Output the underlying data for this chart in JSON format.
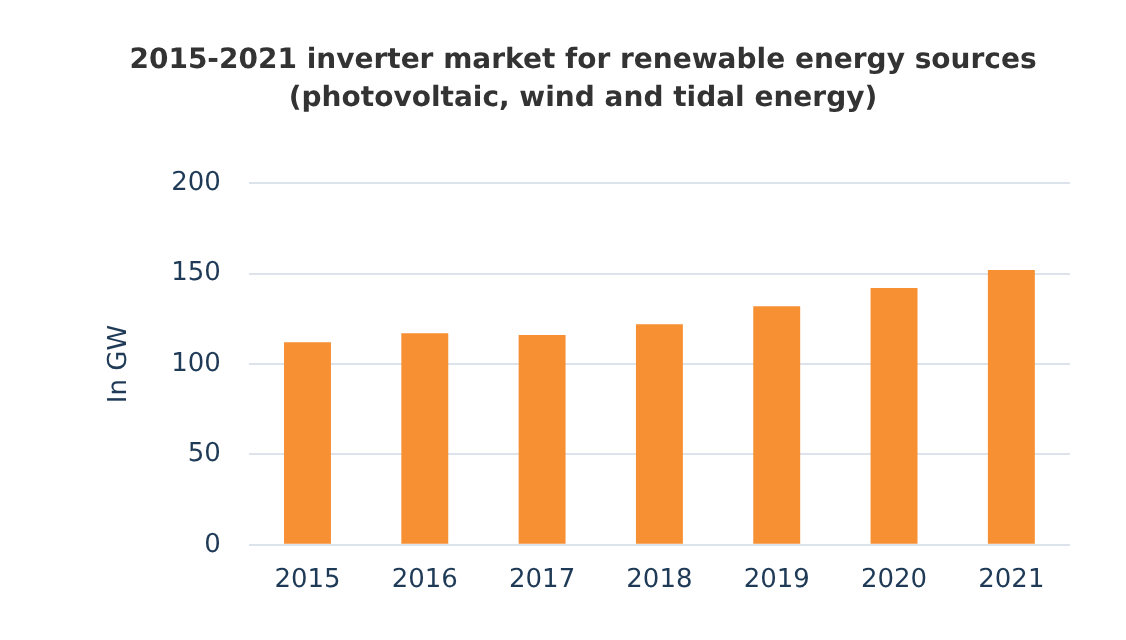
{
  "chart_data": {
    "type": "bar",
    "title": "2015-2021 inverter market for renewable energy sources",
    "subtitle": "(photovoltaic, wind and tidal energy)",
    "ylabel": "In GW",
    "categories": [
      "2015",
      "2016",
      "2017",
      "2018",
      "2019",
      "2020",
      "2021"
    ],
    "values": [
      112,
      117,
      116,
      122,
      132,
      142,
      152
    ],
    "color": "#f78f33",
    "ylim": [
      0,
      200
    ],
    "yticks": [
      0,
      50,
      100,
      150,
      200
    ],
    "grid": "y"
  }
}
